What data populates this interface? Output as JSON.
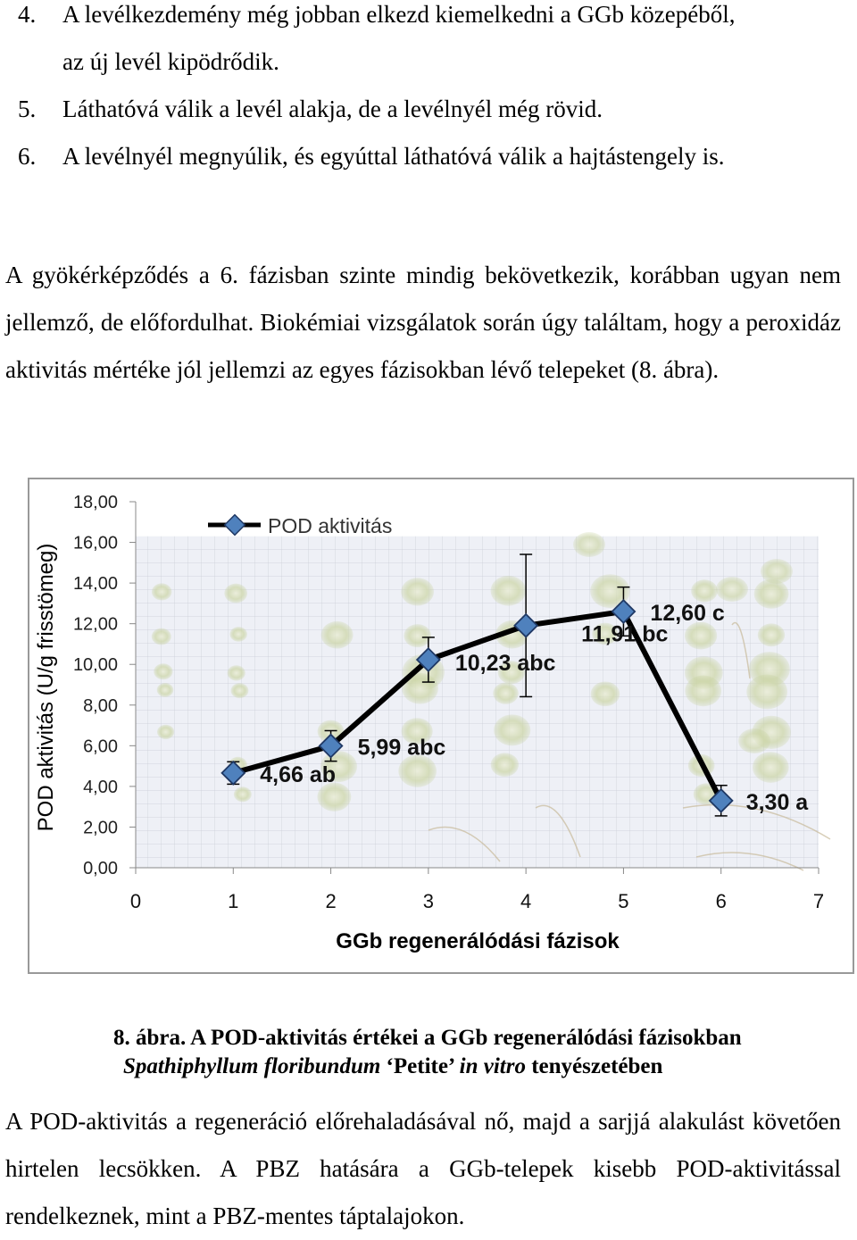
{
  "list_items": [
    {
      "num": "4.",
      "lines": [
        "A levélkezdemény még jobban elkezd kiemelkedni a GGb közepéből,",
        "az új levél kipödrődik."
      ]
    },
    {
      "num": "5.",
      "lines": [
        "Láthatóvá válik a levél alakja, de a levélnyél még rövid."
      ]
    },
    {
      "num": "6.",
      "lines": [
        "A levélnyél megnyúlik, és egyúttal láthatóvá válik a hajtástengely is."
      ]
    }
  ],
  "paragraph1": "A gyökérképződés a 6. fázisban szinte mindig bekövetkezik, korábban ugyan nem jellemző, de előfordulhat. Biokémiai vizsgálatok során úgy találtam, hogy a peroxidáz aktivitás mértéke jól jellemzi az egyes fázisokban lévő telepeket (8. ábra).",
  "chart_data": {
    "type": "line",
    "xlabel": "GGb regenerálódási fázisok",
    "ylabel": "POD aktivitás (U/g frisstömeg)",
    "xlim": [
      0,
      7
    ],
    "ylim": [
      0,
      18
    ],
    "x_ticks": [
      "0",
      "1",
      "2",
      "3",
      "4",
      "5",
      "6",
      "7"
    ],
    "y_ticks": [
      "0,00",
      "2,00",
      "4,00",
      "6,00",
      "8,00",
      "10,00",
      "12,00",
      "14,00",
      "16,00",
      "18,00"
    ],
    "legend": "top-left",
    "background_photo": "plantlet-culture-photo",
    "series": [
      {
        "name": "POD aktivitás",
        "color": "#000000",
        "marker_color": "#4f81bd",
        "x": [
          1,
          2,
          3,
          4,
          5,
          6
        ],
        "y": [
          4.66,
          5.99,
          10.23,
          11.91,
          12.6,
          3.3
        ],
        "err": [
          0.55,
          0.75,
          1.1,
          3.5,
          1.2,
          0.75
        ],
        "labels": [
          "4,66 ab",
          "5,99 abc",
          "10,23 abc",
          "11,91 bc",
          "12,60 c",
          "3,30 a"
        ]
      }
    ]
  },
  "caption": {
    "fig": "8. ábra.",
    "title": "A POD-aktivitás értékei a GGb regenerálódási fázisokban",
    "species": "Spathiphyllum floribundum",
    "cultivar": "‘Petite’",
    "invitro": "in vitro",
    "rest": "tenyészetében"
  },
  "paragraph2": "A POD-aktivitás a regeneráció előrehaladásával nő, majd a sarjjá alakulást követően hirtelen lecsökken. A PBZ hatására a GGb-telepek kisebb POD-aktivitással rendelkeznek, mint a PBZ-mentes táptalajokon."
}
